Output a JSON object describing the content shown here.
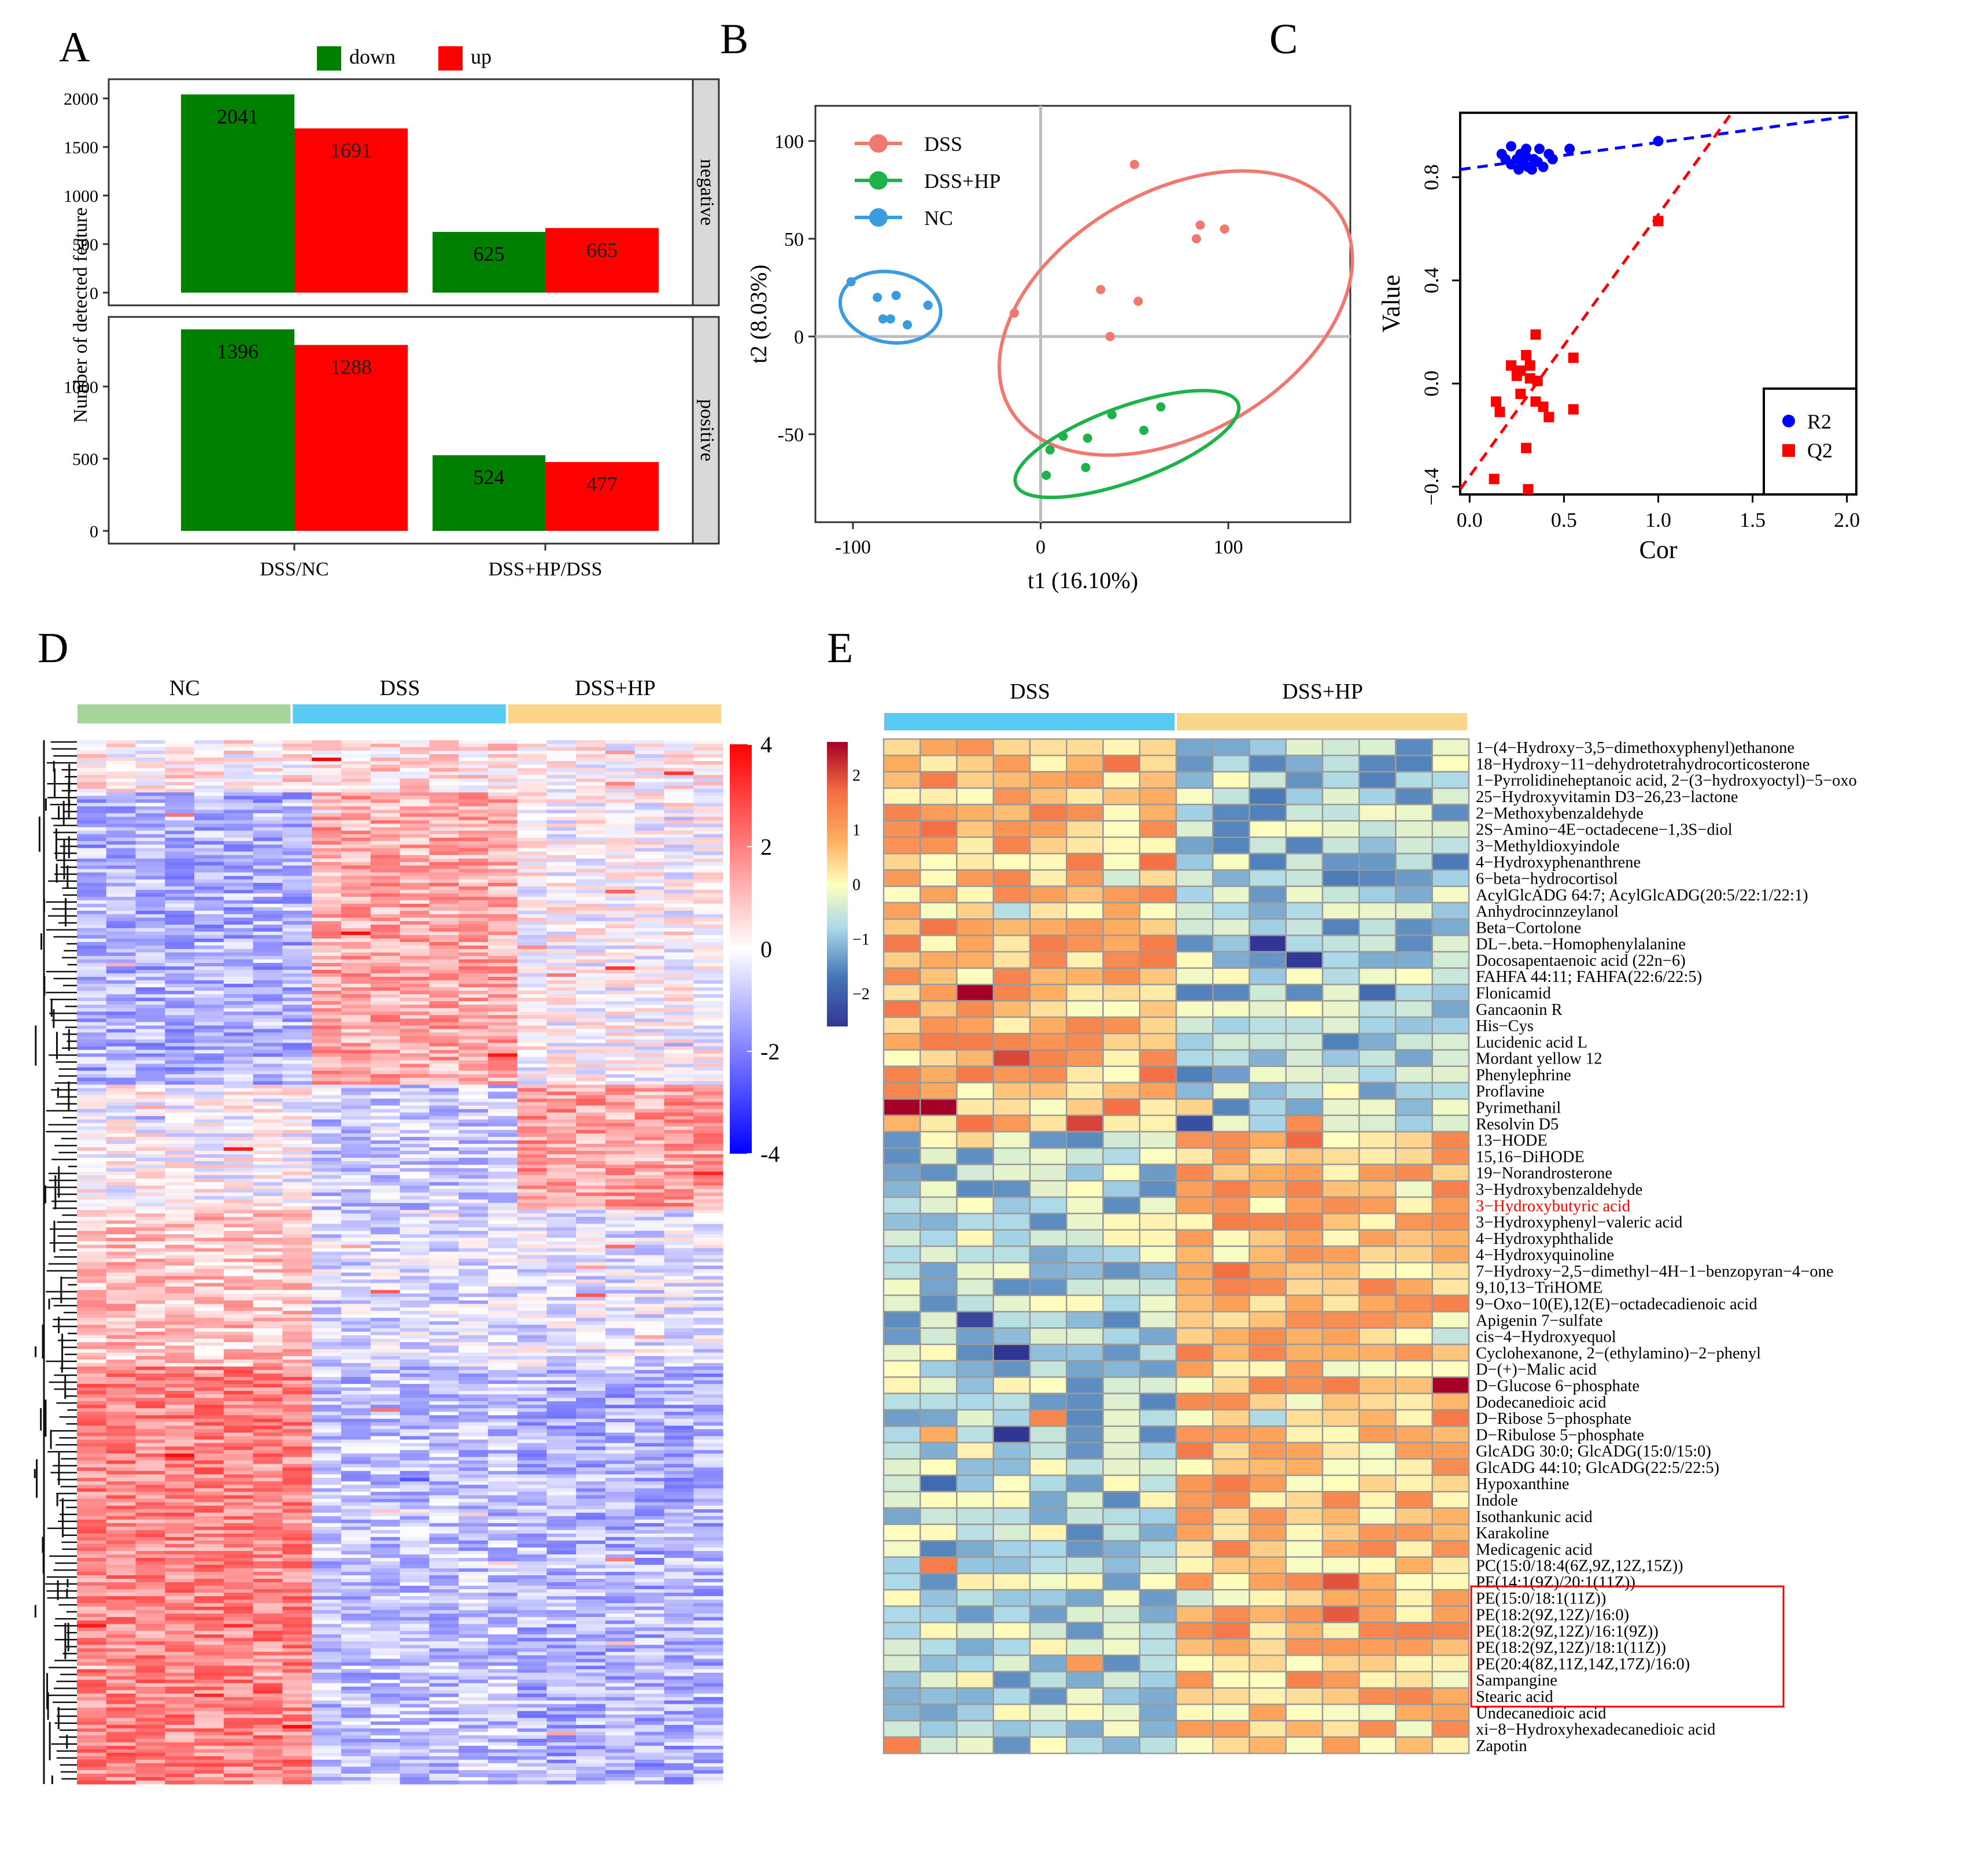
{
  "colors": {
    "green": "#008000",
    "red": "#ff0000",
    "dss": "#f1786f",
    "dsshp": "#1db34a",
    "nc": "#3a9be0",
    "r2": "#0000ff",
    "q2": "#ff0000",
    "bar_nc": "#a6d49a",
    "bar_dss": "#59cbf3",
    "bar_dsshp": "#fbd58a",
    "highlight": "#ff0000"
  },
  "panels": {
    "a": "A",
    "b": "B",
    "c": "C",
    "d": "D",
    "e": "E"
  },
  "chart_data": [
    {
      "id": "A",
      "type": "bar",
      "legend": [
        "down",
        "up"
      ],
      "ylabel": "Number of detected feature",
      "categories": [
        "DSS/NC",
        "DSS+HP/DSS"
      ],
      "facets": [
        {
          "strip": "negative",
          "ylim": [
            0,
            2150
          ],
          "yticks": [
            0,
            500,
            1000,
            1500,
            2000
          ],
          "series": [
            {
              "name": "down",
              "values": [
                2041,
                625
              ]
            },
            {
              "name": "up",
              "values": [
                1691,
                665
              ]
            }
          ]
        },
        {
          "strip": "positive",
          "ylim": [
            0,
            1450
          ],
          "yticks": [
            0,
            500,
            1000
          ],
          "series": [
            {
              "name": "down",
              "values": [
                1396,
                524
              ]
            },
            {
              "name": "up",
              "values": [
                1288,
                477
              ]
            }
          ]
        }
      ]
    },
    {
      "id": "B",
      "type": "scatter",
      "xlabel": "t1 (16.10%)",
      "ylabel": "t2 (8.03%)",
      "xlim": [
        -120,
        165
      ],
      "ylim": [
        -95,
        118
      ],
      "xticks": [
        -100,
        0,
        100
      ],
      "yticks": [
        -50,
        0,
        50,
        100
      ],
      "series": [
        {
          "name": "DSS",
          "points": [
            [
              50,
              88
            ],
            [
              85,
              57
            ],
            [
              98,
              55
            ],
            [
              83,
              50
            ],
            [
              32,
              24
            ],
            [
              52,
              18
            ],
            [
              -14,
              12
            ],
            [
              37,
              0
            ]
          ],
          "ellipse": {
            "cx": 72,
            "cy": 12,
            "rx": 102,
            "ry": 62,
            "angle": 30
          }
        },
        {
          "name": "DSS+HP",
          "points": [
            [
              64,
              -36
            ],
            [
              38,
              -40
            ],
            [
              55,
              -48
            ],
            [
              12,
              -51
            ],
            [
              25,
              -52
            ],
            [
              5,
              -58
            ],
            [
              24,
              -67
            ],
            [
              3,
              -71
            ]
          ],
          "ellipse": {
            "cx": 46,
            "cy": -55,
            "rx": 63,
            "ry": 19,
            "angle": 20
          }
        },
        {
          "name": "NC",
          "points": [
            [
              -101,
              28
            ],
            [
              -87,
              20
            ],
            [
              -77,
              21
            ],
            [
              -60,
              16
            ],
            [
              -84,
              9
            ],
            [
              -80,
              9
            ],
            [
              -71,
              6
            ]
          ],
          "ellipse": {
            "cx": -80,
            "cy": 15,
            "rx": 27,
            "ry": 18,
            "angle": -10
          }
        }
      ]
    },
    {
      "id": "C",
      "type": "scatter",
      "xlabel": "Cor",
      "ylabel": "Value",
      "xlim": [
        -0.05,
        2.05
      ],
      "ylim": [
        -0.43,
        1.05
      ],
      "xticks": [
        0.0,
        0.5,
        1.0,
        1.5,
        2.0
      ],
      "yticks": [
        -0.4,
        0.0,
        0.4,
        0.8
      ],
      "yticklabels": [
        "−0.4",
        "0.0",
        "0.4",
        "0.8"
      ],
      "series": [
        {
          "name": "R2",
          "points": [
            [
              1.0,
              0.94
            ],
            [
              0.22,
              0.92
            ],
            [
              0.3,
              0.91
            ],
            [
              0.37,
              0.91
            ],
            [
              0.53,
              0.91
            ],
            [
              0.17,
              0.89
            ],
            [
              0.27,
              0.89
            ],
            [
              0.42,
              0.89
            ],
            [
              0.3,
              0.88
            ],
            [
              0.19,
              0.87
            ],
            [
              0.25,
              0.87
            ],
            [
              0.34,
              0.87
            ],
            [
              0.44,
              0.87
            ],
            [
              0.28,
              0.86
            ],
            [
              0.36,
              0.86
            ],
            [
              0.22,
              0.85
            ],
            [
              0.31,
              0.84
            ],
            [
              0.39,
              0.84
            ],
            [
              0.26,
              0.83
            ],
            [
              0.33,
              0.83
            ]
          ],
          "trend": [
            [
              -0.05,
              0.83
            ],
            [
              2.05,
              1.04
            ]
          ]
        },
        {
          "name": "Q2",
          "points": [
            [
              1.0,
              0.63
            ],
            [
              0.35,
              0.19
            ],
            [
              0.3,
              0.11
            ],
            [
              0.55,
              0.1
            ],
            [
              0.22,
              0.07
            ],
            [
              0.32,
              0.07
            ],
            [
              0.27,
              0.05
            ],
            [
              0.25,
              0.03
            ],
            [
              0.32,
              0.02
            ],
            [
              0.36,
              0.01
            ],
            [
              0.27,
              -0.04
            ],
            [
              0.14,
              -0.07
            ],
            [
              0.35,
              -0.07
            ],
            [
              0.39,
              -0.09
            ],
            [
              0.55,
              -0.1
            ],
            [
              0.16,
              -0.11
            ],
            [
              0.42,
              -0.13
            ],
            [
              0.3,
              -0.25
            ],
            [
              0.13,
              -0.37
            ],
            [
              0.31,
              -0.41
            ]
          ],
          "trend": [
            [
              -0.05,
              -0.41
            ],
            [
              1.38,
              1.04
            ]
          ]
        }
      ]
    },
    {
      "id": "D",
      "type": "heatmap",
      "groups": [
        "NC",
        "DSS",
        "DSS+HP"
      ],
      "scale": {
        "min": -4,
        "max": 4,
        "ticks": [
          4,
          2,
          0,
          -2,
          -4
        ],
        "ticklabels": [
          "4",
          "2",
          "0",
          "-2",
          "-4"
        ]
      }
    },
    {
      "id": "E",
      "type": "heatmap",
      "groups": [
        "DSS",
        "DSS+HP"
      ],
      "scale": {
        "min": -2.6,
        "max": 2.6,
        "ticks": [
          2,
          1,
          0,
          -1,
          -2
        ],
        "ticklabels": [
          "2",
          "1",
          "0",
          "−1",
          "−2"
        ]
      },
      "highlight_row": "3−Hydroxybutyric acid",
      "boxed_rows": [
        52,
        58
      ],
      "rows": [
        "1−(4−Hydroxy−3,5−dimethoxyphenyl)ethanone",
        "18−Hydroxy−11−dehydrotetrahydrocorticosterone",
        "1−Pyrrolidineheptanoic acid, 2−(3−hydroxyoctyl)−5−oxo",
        "25−Hydroxyvitamin D3−26,23−lactone",
        "2−Methoxybenzaldehyde",
        "2S−Amino−4E−octadecene−1,3S−diol",
        "3−Methyldioxyindole",
        "4−Hydroxyphenanthrene",
        "6−beta−hydrocortisol",
        "AcylGlcADG 64:7; AcylGlcADG(20:5/22:1/22:1)",
        "Anhydrocinnzeylanol",
        "Beta−Cortolone",
        "DL−.beta.−Homophenylalanine",
        "Docosapentaenoic acid (22n−6)",
        "FAHFA 44:11; FAHFA(22:6/22:5)",
        "Flonicamid",
        "Gancaonin R",
        "His−Cys",
        "Lucidenic acid L",
        "Mordant yellow 12",
        "Phenylephrine",
        "Proflavine",
        "Pyrimethanil",
        "Resolvin D5",
        "13−HODE",
        "15,16−DiHODE",
        "19−Norandrosterone",
        "3−Hydroxybenzaldehyde",
        "3−Hydroxybutyric acid",
        "3−Hydroxyphenyl−valeric acid",
        "4−Hydroxyphthalide",
        "4−Hydroxyquinoline",
        "7−Hydroxy−2,5−dimethyl−4H−1−benzopyran−4−one",
        "9,10,13−TriHOME",
        "9−Oxo−10(E),12(E)−octadecadienoic acid",
        "Apigenin 7−sulfate",
        "cis−4−Hydroxyequol",
        "Cyclohexanone, 2−(ethylamino)−2−phenyl",
        "D−(+)−Malic acid",
        "D−Glucose 6−phosphate",
        "Dodecanedioic acid",
        "D−Ribose 5−phosphate",
        "D−Ribulose 5−phosphate",
        "GlcADG 30:0; GlcADG(15:0/15:0)",
        "GlcADG 44:10; GlcADG(22:5/22:5)",
        "Hypoxanthine",
        "Indole",
        "Isothankunic acid",
        "Karakoline",
        "Medicagenic acid",
        "PC(15:0/18:4(6Z,9Z,12Z,15Z))",
        "PE(14:1(9Z)/20:1(11Z))",
        "PE(15:0/18:1(11Z))",
        "PE(18:2(9Z,12Z)/16:0)",
        "PE(18:2(9Z,12Z)/16:1(9Z))",
        "PE(18:2(9Z,12Z)/18:1(11Z))",
        "PE(20:4(8Z,11Z,14Z,17Z)/16:0)",
        "Sampangine",
        "Stearic acid",
        "Undecanedioic acid",
        "xi−8−Hydroxyhexadecanedioic acid",
        "Zapotin"
      ]
    }
  ]
}
